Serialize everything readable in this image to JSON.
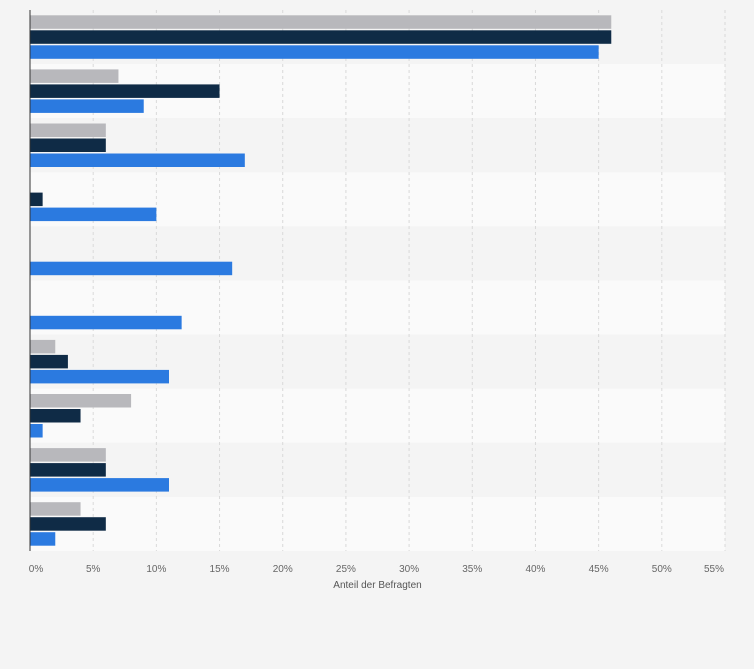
{
  "chart_data": {
    "type": "bar",
    "orientation": "horizontal",
    "title": "",
    "xlabel": "Anteil der Befragten",
    "ylabel": "",
    "xlim": [
      0,
      55
    ],
    "x_ticks": [
      0,
      5,
      10,
      15,
      20,
      25,
      30,
      35,
      40,
      45,
      50,
      55
    ],
    "x_tick_labels": [
      "0%",
      "5%",
      "10%",
      "15%",
      "20%",
      "25%",
      "30%",
      "35%",
      "40%",
      "45%",
      "50%",
      "55%"
    ],
    "grid": true,
    "legend": "none",
    "categories": [
      "",
      "",
      "",
      "",
      "",
      "",
      "",
      "",
      "",
      ""
    ],
    "series": [
      {
        "name": "",
        "color": "#b8b8bc",
        "values": [
          46,
          7,
          6,
          0,
          0,
          0,
          2,
          8,
          6,
          4
        ]
      },
      {
        "name": "",
        "color": "#0f2b46",
        "values": [
          46,
          15,
          6,
          1,
          0,
          0,
          3,
          4,
          6,
          6
        ]
      },
      {
        "name": "",
        "color": "#2b7ae0",
        "values": [
          45,
          9,
          17,
          10,
          16,
          12,
          11,
          1,
          11,
          2
        ]
      }
    ]
  }
}
